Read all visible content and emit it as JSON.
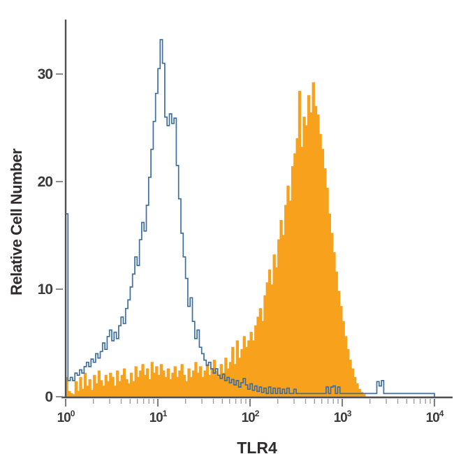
{
  "chart_data": {
    "type": "area",
    "subtype": "flow_cytometry_histogram_overlay",
    "title": "",
    "xlabel": "TLR4",
    "ylabel": "Relative Cell Number",
    "x_scale": "log10",
    "x_axis": {
      "range_exponents": [
        0,
        4
      ],
      "tick_exponents": [
        0,
        1,
        2,
        3,
        4
      ],
      "tick_label_base": "10",
      "minor_tick_multiples": [
        2,
        3,
        4,
        5,
        6,
        7,
        8,
        9
      ]
    },
    "y_axis": {
      "ticks": [
        0,
        10,
        20,
        30
      ],
      "range": [
        0,
        35
      ]
    },
    "colors": {
      "open_histogram": "#3c6e9e",
      "filled_histogram": "#f7a11c",
      "axis": "#4f4f51",
      "major_tick": "#6f6f6f",
      "minor_tick": "#9d9d9d",
      "tick_label": "#3a3a3a",
      "axis_label": "#2e2b2c",
      "background": "#ffffff"
    },
    "bins_per_decade": 40,
    "series": [
      {
        "name": "open_blue_histogram",
        "style": "open_outline",
        "color": "#3c6e9e",
        "peak_x": 10,
        "peak_height": 33,
        "values": [
          17,
          1.5,
          1.8,
          1.5,
          2.2,
          2.0,
          2.5,
          2.2,
          2.8,
          3.2,
          2.8,
          3.5,
          3.2,
          4.0,
          3.6,
          4.2,
          5.0,
          4.4,
          5.6,
          6.2,
          5.2,
          6.0,
          5.4,
          6.6,
          7.4,
          6.8,
          8.2,
          9.0,
          10.2,
          11.4,
          13.0,
          12.2,
          14.6,
          16.2,
          15.4,
          17.8,
          20.4,
          23.0,
          25.6,
          28.2,
          30.5,
          33.2,
          31.0,
          26.0,
          25.2,
          26.3,
          25.4,
          25.9,
          21.5,
          18.4,
          15.2,
          13.0,
          11.0,
          8.4,
          9.2,
          7.0,
          5.4,
          6.2,
          4.6,
          4.0,
          3.4,
          2.9,
          3.2,
          2.6,
          2.2,
          2.6,
          2.0,
          1.7,
          2.1,
          1.5,
          1.8,
          1.3,
          1.6,
          1.1,
          1.5,
          0.9,
          1.3,
          1.7,
          1.1,
          0.7,
          1.2,
          0.6,
          1.0,
          0.5,
          0.9,
          0.4,
          0.8,
          0.3,
          0.9,
          0.3,
          0.8,
          0.3,
          0.8,
          0.3,
          0.7,
          0.3,
          0.8,
          0.3,
          0.3,
          0.7,
          0.3,
          0.3,
          0.3,
          0.3,
          0.3,
          0.3,
          0.3,
          0.3,
          0.3,
          0.3,
          0.3,
          0.3,
          0.3,
          0.9,
          0.3,
          0.9,
          1.0,
          0.3,
          0.9,
          0.3,
          0.3,
          0.3,
          0.3,
          0.3,
          0.3,
          0.3,
          0.3,
          0.3,
          0.3,
          0.3,
          0.3,
          0.3,
          0.3,
          0.3,
          0.3,
          1.4,
          1.0,
          1.5,
          0.3,
          0.3,
          0.3,
          0.3,
          0.3,
          0.3,
          0.3,
          0.3,
          0.3,
          0.3,
          0.3,
          0.3,
          0.3,
          0.3,
          0.3,
          0.3,
          0.3,
          0.3,
          0.3,
          0.3,
          0.3,
          0.3
        ]
      },
      {
        "name": "filled_orange_histogram",
        "style": "filled",
        "color": "#f7a11c",
        "peak_x": 450,
        "peak_height": 29,
        "values": [
          1.8,
          0.5,
          0.3,
          0.2,
          1.4,
          0.5,
          1.8,
          0.7,
          2.2,
          1.0,
          1.6,
          0.6,
          2.0,
          1.2,
          2.4,
          1.5,
          1.0,
          2.0,
          1.4,
          2.2,
          1.8,
          1.0,
          2.4,
          1.4,
          2.0,
          2.6,
          1.6,
          1.2,
          2.2,
          1.4,
          2.8,
          1.8,
          2.4,
          3.0,
          2.0,
          2.6,
          1.6,
          3.2,
          2.2,
          2.8,
          2.0,
          3.0,
          2.4,
          1.8,
          2.6,
          1.6,
          2.2,
          2.8,
          1.8,
          2.4,
          3.0,
          2.0,
          1.4,
          2.6,
          1.8,
          2.4,
          3.2,
          2.2,
          2.8,
          1.8,
          2.4,
          3.0,
          2.0,
          2.6,
          3.4,
          2.4,
          2.0,
          3.0,
          2.2,
          3.6,
          2.6,
          3.2,
          4.6,
          3.0,
          5.2,
          3.6,
          4.4,
          5.6,
          4.6,
          5.2,
          6.0,
          5.2,
          6.6,
          7.4,
          8.2,
          7.0,
          9.4,
          10.6,
          11.8,
          10.4,
          13.2,
          12.0,
          14.6,
          16.4,
          15.0,
          17.8,
          19.6,
          18.2,
          21.4,
          22.6,
          24.0,
          28.4,
          23.2,
          26.0,
          25.2,
          28.0,
          26.4,
          29.2,
          27.0,
          26.2,
          24.4,
          23.0,
          21.2,
          19.4,
          17.0,
          15.2,
          13.4,
          11.6,
          9.8,
          8.4,
          7.0,
          5.6,
          4.4,
          3.4,
          2.6,
          1.8,
          1.2,
          0.7,
          0.4,
          0.2,
          0,
          0,
          0,
          0,
          0,
          0,
          0,
          0,
          0,
          0,
          0,
          0,
          0,
          0,
          0,
          0,
          0,
          0,
          0,
          0,
          0,
          0,
          0,
          0,
          0,
          0,
          0,
          0,
          0,
          0
        ]
      }
    ]
  }
}
